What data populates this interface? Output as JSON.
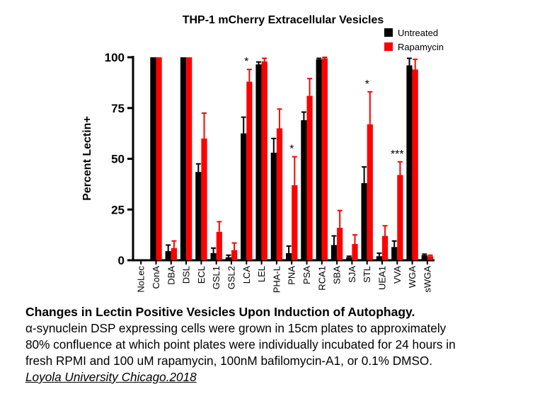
{
  "chart_data": {
    "type": "bar",
    "title": "THP-1 mCherry Extracellular Vesicles",
    "ylabel": "Percent Lectin+",
    "ylim": [
      0,
      100
    ],
    "yticks": [
      "0",
      "25",
      "50",
      "75",
      "100"
    ],
    "legend_position": "top-right",
    "categories": [
      "NoLec",
      "ConA",
      "DBA",
      "DSL",
      "ECL",
      "GSL1",
      "GSL2",
      "LCA",
      "LEL",
      "PHA-L",
      "PNA",
      "PSA",
      "RCA1",
      "SBA",
      "SJA",
      "STL",
      "UEA1",
      "VVA",
      "WGA",
      "sWGA"
    ],
    "series": [
      {
        "name": "Untreated",
        "color": "#000000",
        "values": [
          0,
          100,
          4.5,
          100,
          43.5,
          3.5,
          1.5,
          62.5,
          96.5,
          53,
          3.5,
          69,
          99,
          7.5,
          1.5,
          38,
          2,
          6.5,
          96,
          2.5
        ],
        "errors": [
          0,
          0,
          3,
          0,
          4,
          2.5,
          1,
          8,
          1.2,
          7,
          3.5,
          4,
          0.5,
          4.5,
          0.5,
          8,
          1.5,
          3,
          3.5,
          0.5
        ]
      },
      {
        "name": "Rapamycin",
        "color": "#ff0000",
        "values": [
          0,
          100,
          6,
          100,
          60,
          14,
          5,
          88,
          98,
          65,
          37,
          81,
          99.5,
          16,
          8,
          67,
          12,
          42,
          94,
          2
        ],
        "errors": [
          0,
          0,
          3.5,
          0,
          12.5,
          5,
          3.5,
          6,
          1.5,
          9.5,
          14,
          8.5,
          0.5,
          8.5,
          4.5,
          16,
          5,
          6.5,
          5,
          0.5
        ]
      }
    ],
    "annotations": [
      {
        "category": "LCA",
        "text": "*"
      },
      {
        "category": "PNA",
        "text": "*"
      },
      {
        "category": "STL",
        "text": "*"
      },
      {
        "category": "VVA",
        "text": "***"
      }
    ]
  },
  "caption": {
    "title": "Changes in Lectin Positive Vesicles Upon Induction of Autophagy.",
    "line1": "α-synuclein DSP expressing cells were grown in 15cm plates to approximately",
    "line2": "80% confluence at which point plates were individually incubated for 24 hours in",
    "line3": "fresh RPMI and 100 uM rapamycin, 100nM bafilomycin-A1, or 0.1% DMSO.",
    "source": "Loyola University Chicago.2018"
  }
}
